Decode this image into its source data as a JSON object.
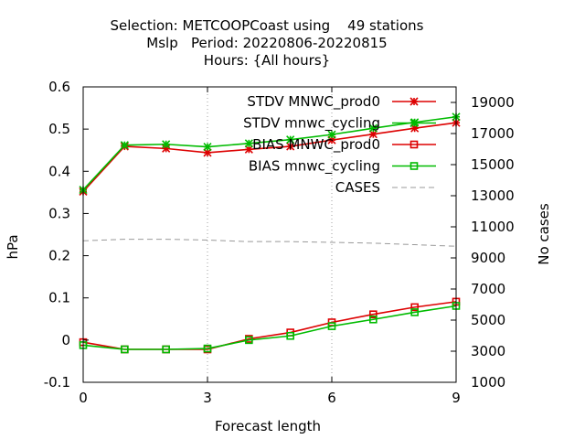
{
  "chart_data": {
    "type": "line",
    "title_lines": [
      "Selection: METCOOPCoast using    49 stations",
      "Mslp   Period: 20220806-20220815",
      "Hours: {All hours}"
    ],
    "xlabel": "Forecast length",
    "ylabel": "hPa",
    "y2label": "No cases",
    "xlim": [
      0,
      9
    ],
    "ylim": [
      -0.1,
      0.6
    ],
    "y2lim": [
      1000,
      20000
    ],
    "x_ticks": [
      "0",
      "3",
      "6",
      "9"
    ],
    "x_tick_values": [
      0,
      3,
      6,
      9
    ],
    "y_ticks": [
      "-0.1",
      "0",
      "0.1",
      "0.2",
      "0.3",
      "0.4",
      "0.5",
      "0.6"
    ],
    "y_tick_values": [
      -0.1,
      0,
      0.1,
      0.2,
      0.3,
      0.4,
      0.5,
      0.6
    ],
    "y2_ticks": [
      "1000",
      "3000",
      "5000",
      "7000",
      "9000",
      "11000",
      "13000",
      "15000",
      "17000",
      "19000"
    ],
    "y2_tick_values": [
      1000,
      3000,
      5000,
      7000,
      9000,
      11000,
      13000,
      15000,
      17000,
      19000
    ],
    "grid": true,
    "legend_position": "top-right",
    "x": [
      0,
      1,
      2,
      3,
      4,
      5,
      6,
      7,
      8,
      9
    ],
    "series": [
      {
        "name": "STDV MNWC_prod0",
        "axis": "y",
        "color": "#dd0000",
        "marker": "star",
        "values": [
          0.352,
          0.459,
          0.454,
          0.444,
          0.452,
          0.459,
          0.474,
          0.488,
          0.502,
          0.515
        ]
      },
      {
        "name": "STDV mnwc_cycling",
        "axis": "y",
        "color": "#00bb00",
        "marker": "star",
        "values": [
          0.356,
          0.462,
          0.464,
          0.458,
          0.466,
          0.475,
          0.487,
          0.502,
          0.516,
          0.529
        ]
      },
      {
        "name": "BIAS MNWC_prod0",
        "axis": "y",
        "color": "#dd0000",
        "marker": "square",
        "values": [
          -0.005,
          -0.022,
          -0.022,
          -0.022,
          0.003,
          0.018,
          0.042,
          0.061,
          0.078,
          0.091
        ]
      },
      {
        "name": "BIAS mnwc_cycling",
        "axis": "y",
        "color": "#00bb00",
        "marker": "square",
        "values": [
          -0.012,
          -0.022,
          -0.022,
          -0.02,
          0.0,
          0.01,
          0.033,
          0.049,
          0.066,
          0.081
        ]
      },
      {
        "name": "CASES",
        "axis": "y2",
        "color": "#999999",
        "marker": "none",
        "dashed": true,
        "values": [
          10100,
          10200,
          10200,
          10150,
          10050,
          10050,
          10000,
          9950,
          9850,
          9750
        ]
      }
    ]
  }
}
